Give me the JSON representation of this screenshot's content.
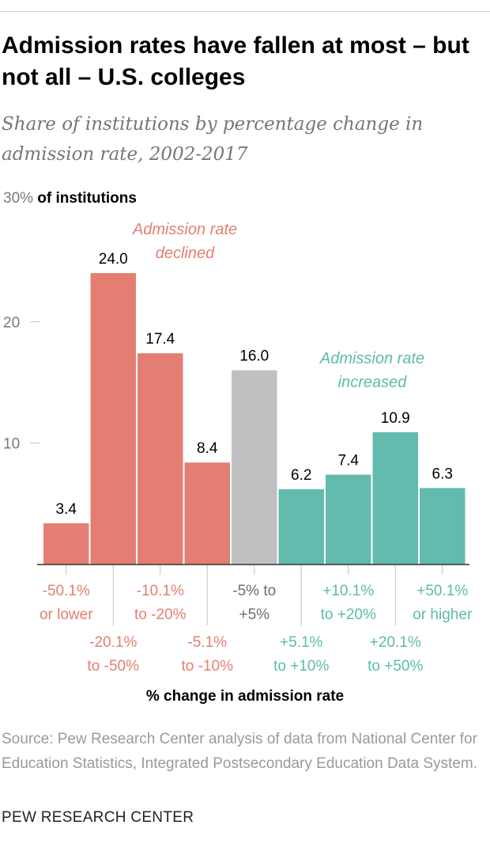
{
  "header": {
    "title": "Admission rates have fallen at most – but not all – U.S. colleges",
    "subtitle": "Share of institutions by percentage change in admission rate, 2002-2017"
  },
  "footer": {
    "source": "Source: Pew Research Center analysis of data from National Center for Education Statistics, Integrated Postsecondary Education Data System.",
    "organization": "PEW RESEARCH CENTER"
  },
  "chart_data": {
    "type": "bar",
    "title": "Admission rates have fallen at most – but not all – U.S. colleges",
    "subtitle": "Share of institutions by percentage change in admission rate, 2002-2017",
    "xlabel": "% change in admission rate",
    "ylabel": "",
    "ylim": [
      0,
      30
    ],
    "yticks": [
      {
        "value": 10,
        "label": "10"
      },
      {
        "value": 20,
        "label": "20"
      },
      {
        "value": 30,
        "label": "30%",
        "suffix": "of institutions"
      }
    ],
    "categories": [
      [
        "-50.1%",
        "or lower"
      ],
      [
        "-20.1%",
        "to -50%"
      ],
      [
        "-10.1%",
        "to -20%"
      ],
      [
        "-5.1%",
        "to -10%"
      ],
      [
        "-5% to",
        "+5%"
      ],
      [
        "+5.1%",
        "to +10%"
      ],
      [
        "+10.1%",
        "to +20%"
      ],
      [
        "+20.1%",
        "to +50%"
      ],
      [
        "+50.1%",
        "or higher"
      ]
    ],
    "values": [
      3.4,
      24.0,
      17.4,
      8.4,
      16.0,
      6.2,
      7.4,
      10.9,
      6.3
    ],
    "value_labels": [
      "3.4",
      "24.0",
      "17.4",
      "8.4",
      "16.0",
      "6.2",
      "7.4",
      "10.9",
      "6.3"
    ],
    "groups": [
      "declined",
      "declined",
      "declined",
      "declined",
      "neutral",
      "increased",
      "increased",
      "increased",
      "increased"
    ],
    "colors": {
      "declined": "#e47e72",
      "neutral": "#bfc0c2",
      "increased": "#62bbad"
    },
    "label_colors": {
      "declined": "#e47e72",
      "neutral": "#6e6e6e",
      "increased": "#5dbba9"
    },
    "annotations": [
      {
        "group": "declined",
        "lines": [
          "Admission rate",
          "declined"
        ]
      },
      {
        "group": "increased",
        "lines": [
          "Admission rate",
          "increased"
        ]
      }
    ],
    "grid": false,
    "legend": "none"
  }
}
